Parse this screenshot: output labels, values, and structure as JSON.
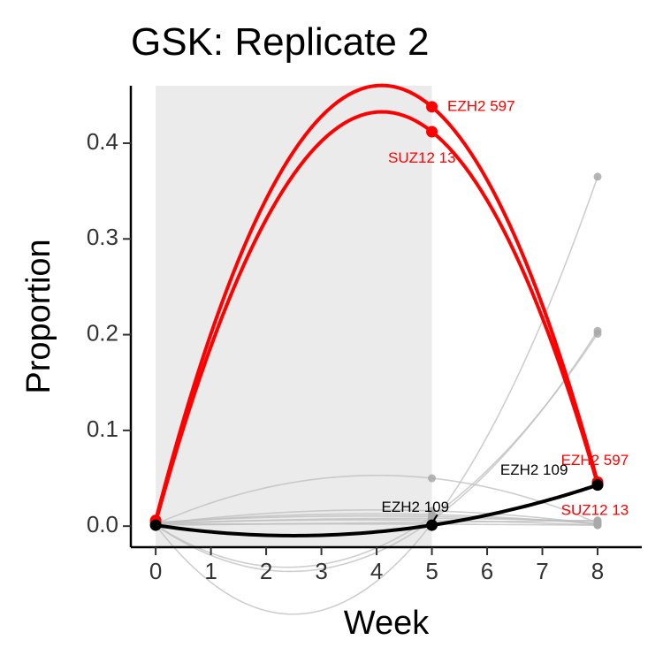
{
  "chart_data": {
    "type": "line",
    "title": "GSK: Replicate 2",
    "xlabel": "Week",
    "ylabel": "Proportion",
    "xlim": [
      -0.45,
      8.8
    ],
    "ylim": [
      -0.022,
      0.46
    ],
    "x_ticks": [
      0,
      1,
      2,
      3,
      4,
      5,
      6,
      7,
      8
    ],
    "y_ticks": [
      {
        "value": 0.0,
        "label": "0.0"
      },
      {
        "value": 0.1,
        "label": "0.1"
      },
      {
        "value": 0.2,
        "label": "0.2"
      },
      {
        "value": 0.3,
        "label": "0.3"
      },
      {
        "value": 0.4,
        "label": "0.4"
      }
    ],
    "shaded_region": {
      "x": [
        0,
        5
      ],
      "color": "#ebebeb"
    },
    "grid": false,
    "legend": "none",
    "colors": {
      "highlight": "#ff0000",
      "highlight_black": "#000000",
      "background_lines": "#bdbdbd",
      "background_points": "#a8a8a8"
    },
    "x": [
      0,
      5,
      8
    ],
    "series": [
      {
        "values": [
          0.006,
          0.438,
          0.046
        ],
        "color": "#ff0000",
        "highlight": true
      },
      {
        "values": [
          0.004,
          0.412,
          0.044
        ],
        "color": "#ff0000",
        "highlight": true
      },
      {
        "values": [
          0.001,
          0.001,
          0.043
        ],
        "color": "#000000",
        "highlight": true
      },
      {
        "values": [
          0.002,
          0.05,
          0.003
        ],
        "color": "#bdbdbd"
      },
      {
        "values": [
          0.001,
          0.003,
          0.365
        ],
        "color": "#bdbdbd"
      },
      {
        "values": [
          0.001,
          0.006,
          0.204
        ],
        "color": "#bdbdbd"
      },
      {
        "values": [
          0.001,
          0.01,
          0.201
        ],
        "color": "#bdbdbd"
      },
      {
        "values": [
          0.002,
          0.016,
          0.002
        ],
        "color": "#bdbdbd"
      },
      {
        "values": [
          0.003,
          0.012,
          0.002
        ],
        "color": "#bdbdbd"
      },
      {
        "values": [
          0.002,
          0.008,
          0.005
        ],
        "color": "#bdbdbd"
      },
      {
        "values": [
          0.004,
          0.01,
          0.003
        ],
        "color": "#bdbdbd"
      },
      {
        "values": [
          0.003,
          0.006,
          0.001
        ],
        "color": "#bdbdbd"
      },
      {
        "values": [
          0.001,
          0.004,
          0.006
        ],
        "color": "#bdbdbd"
      },
      {
        "values": [
          0.002,
          0.002,
          0.001
        ],
        "color": "#bdbdbd"
      }
    ],
    "annotations": [
      {
        "text": "EZH2 597",
        "x": 5.28,
        "y": 0.438,
        "color": "#ff0000",
        "anchor": "start"
      },
      {
        "text": "SUZ12 13",
        "x": 4.82,
        "y": 0.384,
        "color": "#ff0000",
        "anchor": "middle"
      },
      {
        "text": "EZH2 597",
        "x": 7.95,
        "y": 0.068,
        "color": "#ff0000",
        "anchor": "middle"
      },
      {
        "text": "SUZ12 13",
        "x": 7.95,
        "y": 0.016,
        "color": "#ff0000",
        "anchor": "middle"
      },
      {
        "text": "EZH2 109",
        "x": 6.85,
        "y": 0.058,
        "color": "#000000",
        "anchor": "middle"
      },
      {
        "text": "EZH2 109",
        "x": 4.7,
        "y": 0.019,
        "color": "#000000",
        "anchor": "middle"
      }
    ],
    "segments": [
      {
        "x1": 5.1,
        "y1": 0.012,
        "x2": 5.0,
        "y2": 0.003,
        "color": "#000000"
      }
    ]
  }
}
